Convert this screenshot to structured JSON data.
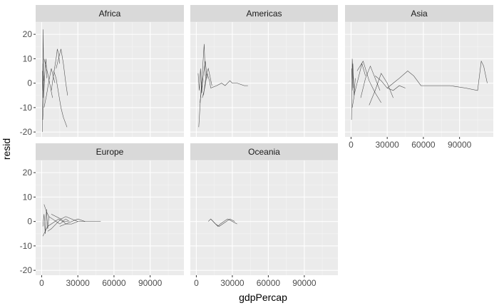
{
  "chart_data": {
    "type": "line",
    "title": "",
    "xlabel": "gdpPercap",
    "ylabel": "resid",
    "xlim": [
      -5000,
      118000
    ],
    "ylim": [
      -22,
      25
    ],
    "xticks": [
      0,
      30000,
      60000,
      90000
    ],
    "xtick_labels": [
      "0",
      "30000",
      "60000",
      "90000"
    ],
    "yticks": [
      -20,
      -10,
      0,
      10,
      20
    ],
    "ytick_labels": [
      "-20",
      "-10",
      "0",
      "10",
      "20"
    ],
    "grid": true,
    "panel_background": "#ebebeb",
    "strip_background": "#d9d9d9",
    "line_color": "#333333",
    "facets": [
      {
        "name": "Africa",
        "series": [
          {
            "x": [
              500,
              700,
              900,
              1200,
              1500,
              1800
            ],
            "y": [
              -20,
              -12,
              2,
              22,
              8,
              1
            ]
          },
          {
            "x": [
              900,
              1500,
              2500,
              3500,
              4000,
              4200
            ],
            "y": [
              -15,
              -8,
              3,
              10,
              6,
              2
            ]
          },
          {
            "x": [
              2000,
              4000,
              6000,
              8000,
              9500,
              11000
            ],
            "y": [
              -10,
              -5,
              1,
              6,
              3,
              0
            ]
          },
          {
            "x": [
              8000,
              10000,
              12000,
              13000,
              14000,
              15000
            ],
            "y": [
              -3,
              4,
              10,
              14,
              12,
              8
            ]
          },
          {
            "x": [
              10000,
              12000,
              14000,
              16000,
              18000,
              21000
            ],
            "y": [
              5,
              2,
              -4,
              -10,
              -14,
              -18
            ]
          },
          {
            "x": [
              12000,
              14000,
              16000,
              18000,
              20000,
              21500
            ],
            "y": [
              6,
              10,
              14,
              8,
              0,
              -5
            ]
          },
          {
            "x": [
              2000,
              3000,
              5000,
              7000,
              9000
            ],
            "y": [
              10,
              8,
              4,
              -1,
              -6
            ]
          },
          {
            "x": [
              600,
              800,
              1000,
              1300,
              1700
            ],
            "y": [
              5,
              -3,
              8,
              -6,
              3
            ]
          }
        ]
      },
      {
        "name": "Americas",
        "series": [
          {
            "x": [
              2000,
              3500,
              5000,
              6500,
              7500
            ],
            "y": [
              -18,
              -6,
              4,
              16,
              3
            ]
          },
          {
            "x": [
              3000,
              4500,
              6000,
              7500,
              9000
            ],
            "y": [
              -8,
              -2,
              4,
              9,
              2
            ]
          },
          {
            "x": [
              5000,
              7000,
              9000,
              11000,
              12000
            ],
            "y": [
              -6,
              -2,
              4,
              1,
              -2
            ]
          },
          {
            "x": [
              12000,
              17000,
              21000,
              24000,
              26000,
              28000,
              30000,
              34000,
              40000,
              43000
            ],
            "y": [
              -2,
              -1,
              0,
              -1,
              0,
              1,
              0,
              0,
              -1,
              -1
            ]
          },
          {
            "x": [
              1500,
              2500,
              3500,
              4500,
              5500
            ],
            "y": [
              4,
              -3,
              6,
              -4,
              2
            ]
          },
          {
            "x": [
              6000,
              8000,
              10000,
              13000
            ],
            "y": [
              -5,
              3,
              6,
              -1
            ]
          }
        ]
      },
      {
        "name": "Asia",
        "series": [
          {
            "x": [
              400,
              700,
              1000,
              1500,
              2000
            ],
            "y": [
              -15,
              -5,
              10,
              4,
              -2
            ]
          },
          {
            "x": [
              1000,
              3000,
              6000,
              9000,
              12000
            ],
            "y": [
              -10,
              -4,
              2,
              8,
              3
            ]
          },
          {
            "x": [
              5000,
              10000,
              15000,
              20000,
              25000
            ],
            "y": [
              5,
              9,
              1,
              -4,
              -8
            ]
          },
          {
            "x": [
              15000,
              20000,
              25000,
              30000,
              35000
            ],
            "y": [
              -9,
              -3,
              4,
              0,
              -6
            ]
          },
          {
            "x": [
              20000,
              25000,
              30000,
              35000,
              40000,
              45000
            ],
            "y": [
              3,
              1,
              -2,
              -3,
              -1,
              -2
            ]
          },
          {
            "x": [
              30000,
              35000,
              40000,
              47000,
              52000,
              58000,
              70000,
              82000,
              95000,
              105000,
              108000,
              110000,
              113000
            ],
            "y": [
              -2,
              0,
              2,
              5,
              3,
              -1,
              -1,
              -1,
              -2,
              -3,
              9,
              7,
              0
            ]
          },
          {
            "x": [
              500,
              1000,
              1500,
              2500,
              3500
            ],
            "y": [
              6,
              -3,
              8,
              -5,
              2
            ]
          },
          {
            "x": [
              8000,
              12000,
              16000,
              20000,
              24000
            ],
            "y": [
              -6,
              2,
              7,
              2,
              -3
            ]
          }
        ]
      },
      {
        "name": "Europe",
        "series": [
          {
            "x": [
              1000,
              3000,
              5000,
              8000,
              11000,
              14000,
              17000,
              20000,
              23000
            ],
            "y": [
              -6,
              -4,
              -2,
              -1,
              0,
              1,
              0,
              1,
              0
            ]
          },
          {
            "x": [
              2000,
              4000,
              6000,
              9000,
              12000,
              15000,
              18000,
              22000
            ],
            "y": [
              7,
              4,
              2,
              1,
              0,
              -1,
              0,
              0
            ]
          },
          {
            "x": [
              5000,
              8000,
              12000,
              16000,
              20000,
              25000,
              30000
            ],
            "y": [
              -4,
              -3,
              -1,
              1,
              2,
              1,
              0
            ]
          },
          {
            "x": [
              8000,
              12000,
              16000,
              20000,
              25000,
              30000,
              36000
            ],
            "y": [
              3,
              2,
              1,
              -1,
              -1,
              0,
              0
            ]
          },
          {
            "x": [
              15000,
              20000,
              25000,
              30000,
              36000,
              42000,
              49000
            ],
            "y": [
              -2,
              -1,
              0,
              1,
              0,
              0,
              0
            ]
          },
          {
            "x": [
              1000,
              2000,
              3000,
              4000,
              5000,
              6000
            ],
            "y": [
              -2,
              3,
              -5,
              5,
              -3,
              2
            ]
          }
        ]
      },
      {
        "name": "Oceania",
        "series": [
          {
            "x": [
              10000,
              12000,
              14000,
              16000,
              18000,
              20000,
              23000,
              26000,
              30000,
              34000
            ],
            "y": [
              0,
              1,
              0,
              -1,
              -2,
              -1,
              0,
              1,
              0,
              -1
            ]
          },
          {
            "x": [
              12000,
              14000,
              16000,
              19000,
              22000,
              25000,
              28000,
              32000
            ],
            "y": [
              1,
              0,
              -1,
              -2,
              -1,
              0,
              1,
              0
            ]
          }
        ]
      }
    ]
  }
}
